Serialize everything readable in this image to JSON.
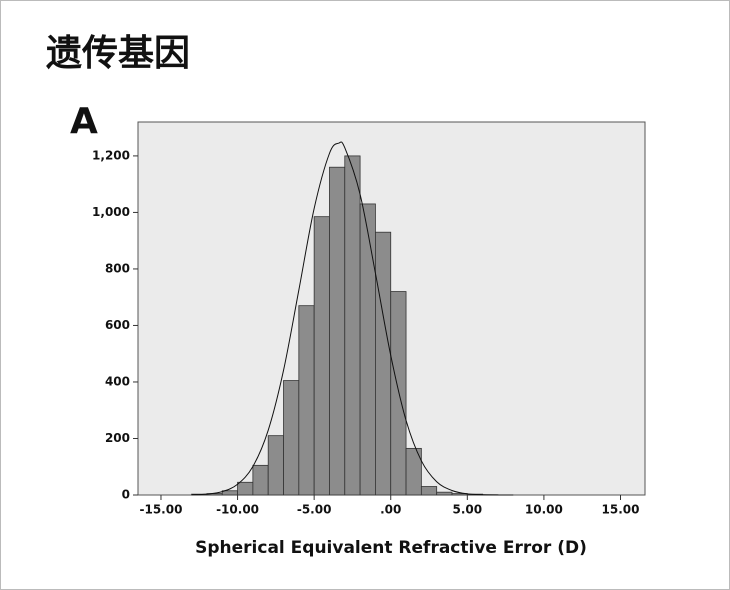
{
  "header": {
    "title": "遗传基因"
  },
  "chart_data": {
    "type": "histogram",
    "panel_label": "A",
    "x_label": "Spherical Equivalent Refractive Error (D)",
    "bins": [
      -13,
      -12,
      -11,
      -10,
      -9,
      -8,
      -7,
      -6,
      -5,
      -4,
      -3,
      -2,
      -1,
      0,
      1,
      2,
      3,
      4,
      5,
      6,
      7
    ],
    "values": [
      3,
      5,
      15,
      45,
      105,
      210,
      405,
      670,
      985,
      1160,
      1200,
      1030,
      930,
      720,
      165,
      30,
      10,
      5,
      3,
      1
    ],
    "color": "#8c8c8c",
    "curve": {
      "x": [
        -13,
        -12,
        -11,
        -10,
        -9,
        -8,
        -7,
        -6,
        -5,
        -4,
        -3.4,
        -3,
        -2,
        -1,
        0,
        1,
        2,
        3,
        4,
        5,
        6,
        8
      ],
      "y": [
        0.8,
        3.3,
        12,
        38,
        101,
        229,
        441,
        725,
        1014,
        1209,
        1245,
        1229,
        1064,
        785,
        494,
        264,
        121,
        47,
        16,
        4,
        1,
        0
      ]
    },
    "xlim": [
      -16.5,
      16.6
    ],
    "ylim": [
      0,
      1320
    ],
    "xticks": [
      {
        "value": -15,
        "label": "-15.00"
      },
      {
        "value": -10,
        "label": "-10.00"
      },
      {
        "value": -5,
        "label": "-5.00"
      },
      {
        "value": 0,
        "label": ".00"
      },
      {
        "value": 5,
        "label": "5.00"
      },
      {
        "value": 10,
        "label": "10.00"
      },
      {
        "value": 15,
        "label": "15.00"
      }
    ],
    "yticks": [
      0,
      200,
      400,
      600,
      800,
      {
        "value": 1000,
        "label": "1,000"
      },
      {
        "value": 1200,
        "label": "1,200"
      }
    ]
  }
}
